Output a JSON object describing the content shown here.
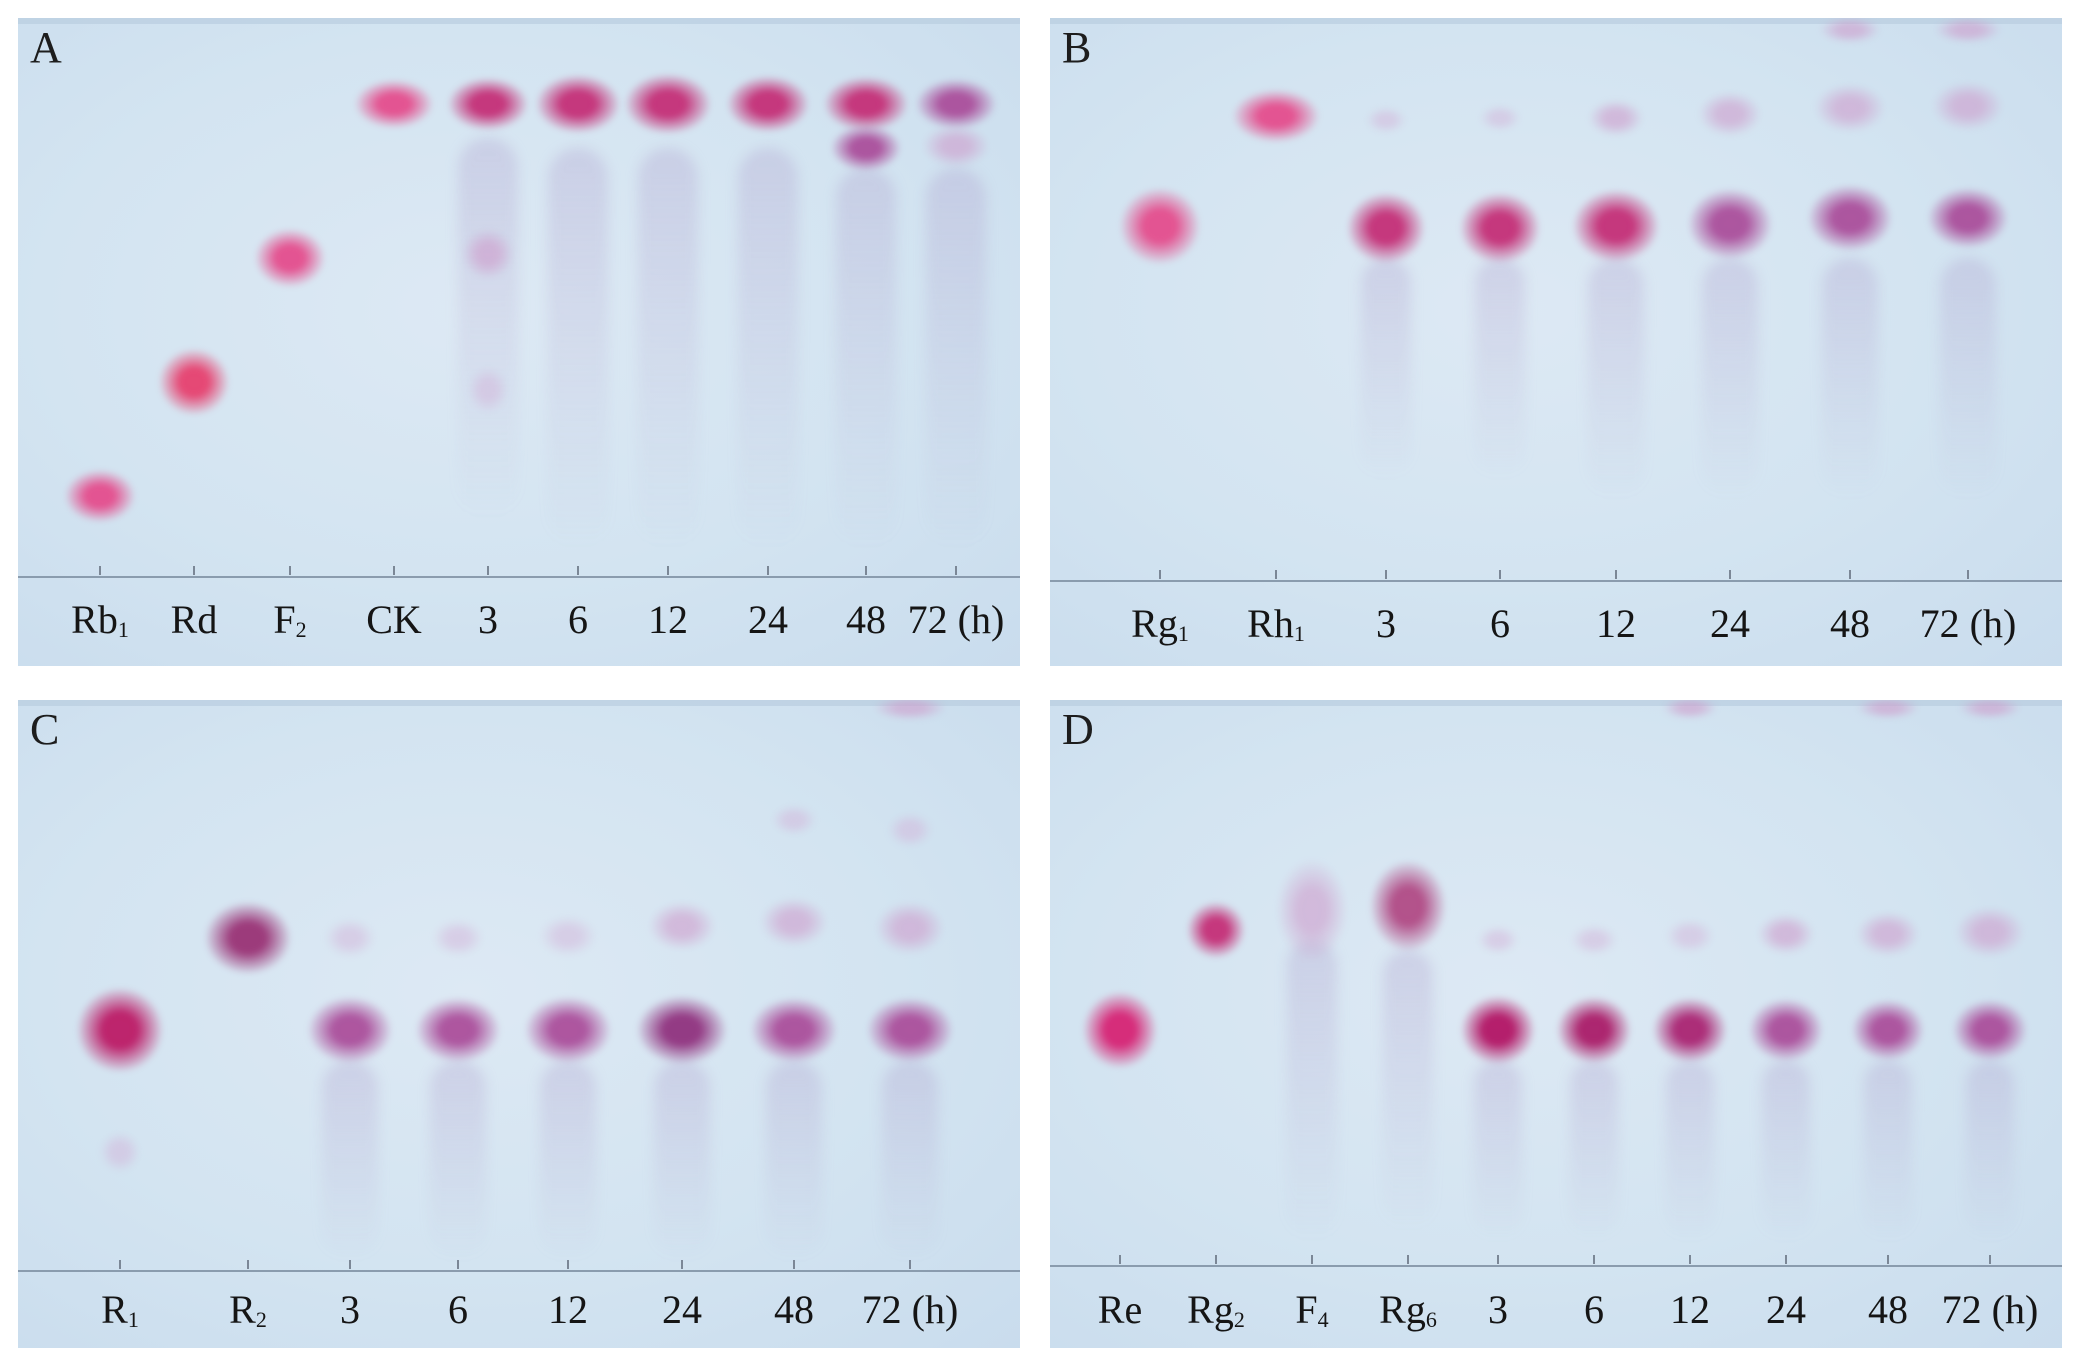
{
  "panels": [
    {
      "letter": "A",
      "lanes": [
        {
          "main": "Rb",
          "sub": "1"
        },
        {
          "main": "Rd",
          "sub": ""
        },
        {
          "main": "F",
          "sub": "2"
        },
        {
          "main": "CK",
          "sub": ""
        },
        {
          "main": "3",
          "sub": ""
        },
        {
          "main": "6",
          "sub": ""
        },
        {
          "main": "12",
          "sub": ""
        },
        {
          "main": "24",
          "sub": ""
        },
        {
          "main": "48",
          "sub": ""
        },
        {
          "main": "72 (h)",
          "sub": ""
        }
      ]
    },
    {
      "letter": "B",
      "lanes": [
        {
          "main": "Rg",
          "sub": "1"
        },
        {
          "main": "Rh",
          "sub": "1"
        },
        {
          "main": "3",
          "sub": ""
        },
        {
          "main": "6",
          "sub": ""
        },
        {
          "main": "12",
          "sub": ""
        },
        {
          "main": "24",
          "sub": ""
        },
        {
          "main": "48",
          "sub": ""
        },
        {
          "main": "72 (h)",
          "sub": ""
        }
      ]
    },
    {
      "letter": "C",
      "lanes": [
        {
          "main": "R",
          "sub": "1"
        },
        {
          "main": "R",
          "sub": "2"
        },
        {
          "main": "3",
          "sub": ""
        },
        {
          "main": "6",
          "sub": ""
        },
        {
          "main": "12",
          "sub": ""
        },
        {
          "main": "24",
          "sub": ""
        },
        {
          "main": "48",
          "sub": ""
        },
        {
          "main": "72 (h)",
          "sub": ""
        }
      ]
    },
    {
      "letter": "D",
      "lanes": [
        {
          "main": "Re",
          "sub": ""
        },
        {
          "main": "Rg",
          "sub": "2"
        },
        {
          "main": "F",
          "sub": "4"
        },
        {
          "main": "Rg",
          "sub": "6"
        },
        {
          "main": "3",
          "sub": ""
        },
        {
          "main": "6",
          "sub": ""
        },
        {
          "main": "12",
          "sub": ""
        },
        {
          "main": "24",
          "sub": ""
        },
        {
          "main": "48",
          "sub": ""
        },
        {
          "main": "72 (h)",
          "sub": ""
        }
      ]
    }
  ]
}
